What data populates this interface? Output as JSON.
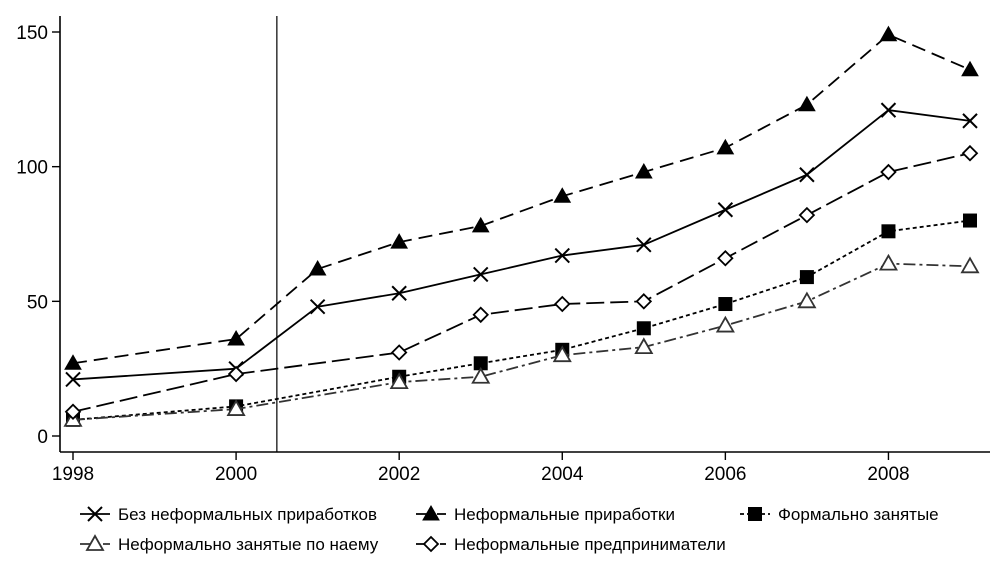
{
  "chart_data": {
    "type": "line",
    "title": "",
    "xlabel": "",
    "ylabel": "",
    "xlim": [
      1998,
      2009
    ],
    "ylim": [
      0,
      150
    ],
    "x_ticks": [
      1998,
      2000,
      2002,
      2004,
      2006,
      2008
    ],
    "x_tick_labels": [
      "1998",
      "2000",
      "2002",
      "2004",
      "2006",
      "2008"
    ],
    "y_ticks": [
      0,
      50,
      100,
      150
    ],
    "y_tick_labels": [
      "0",
      "50",
      "100",
      "150"
    ],
    "vertical_reference_line": 2000.5,
    "grid": false,
    "legend_position": "bottom",
    "x": [
      1998,
      2000,
      2001,
      2002,
      2003,
      2004,
      2005,
      2006,
      2007,
      2008,
      2009
    ],
    "series": [
      {
        "name": "Без неформальных приработков",
        "marker": "x",
        "color": "#000000",
        "dash": "solid",
        "values": [
          21,
          25,
          48,
          53,
          60,
          67,
          71,
          84,
          97,
          121,
          117
        ]
      },
      {
        "name": "Неформальные приработки",
        "marker": "triangle-filled",
        "color": "#000000",
        "dash": "long-dash",
        "values": [
          27,
          36,
          62,
          72,
          78,
          89,
          98,
          107,
          123,
          149,
          136
        ]
      },
      {
        "name": "Формально занятые",
        "marker": "square-filled",
        "color": "#000000",
        "dash": "short-dash",
        "values": [
          6,
          11,
          null,
          22,
          27,
          32,
          40,
          49,
          59,
          76,
          80
        ]
      },
      {
        "name": "Неформально занятые по наему",
        "marker": "triangle-hollow",
        "color": "#333333",
        "dash": "dash-dot",
        "values": [
          6,
          10,
          null,
          20,
          22,
          30,
          33,
          41,
          50,
          64,
          63
        ]
      },
      {
        "name": "Неформальные предприниматели",
        "marker": "diamond-hollow",
        "color": "#000000",
        "dash": "dash",
        "values": [
          9,
          23,
          null,
          31,
          45,
          49,
          50,
          66,
          82,
          98,
          105
        ]
      }
    ]
  }
}
